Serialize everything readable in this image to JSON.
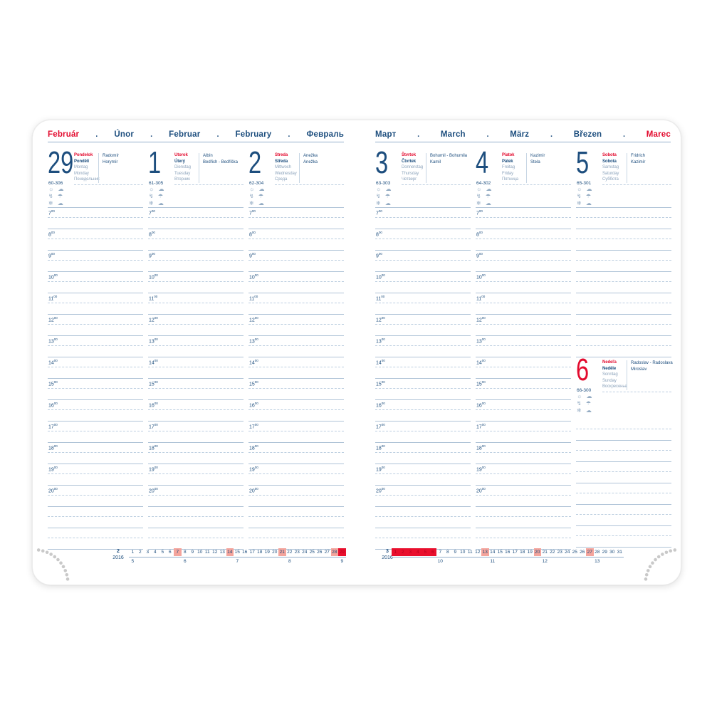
{
  "colors": {
    "dark_blue": "#1d4e7e",
    "red": "#e30c2f",
    "muted_day_names": "#8da4bc",
    "rule_line": "#afc3d7",
    "pink_highlight": "#f4a49c",
    "red_highlight": "#e90f2d",
    "corner_dot_gray": "#c9c9c9"
  },
  "hour_labels": [
    "7",
    "8",
    "9",
    "10",
    "11",
    "12",
    "13",
    "14",
    "15",
    "16",
    "17",
    "18",
    "19",
    "20"
  ],
  "hour_superscript": "00",
  "weather_icon_rows": [
    {
      "name": "sun-and-sun-behind-cloud-icons",
      "glyphs": "☼ ☁"
    },
    {
      "name": "lightning-and-rain-cloud-icons",
      "glyphs": "↯ ☂"
    },
    {
      "name": "snowflake-and-wind-cloud-icons",
      "glyphs": "❄ ☁"
    }
  ],
  "pages": [
    {
      "side": "left",
      "header": {
        "words": [
          "Február",
          "Únor",
          "Februar",
          "February",
          "Февраль"
        ],
        "accent_index": 0,
        "separator": "."
      },
      "columns": [
        {
          "kind": "day",
          "extra_rows": 2,
          "day": {
            "number": "29",
            "ordinal": "60-306",
            "red": false,
            "names": [
              "Pondelok",
              "Pondělí",
              "Montag",
              "Monday",
              "Понедельник"
            ],
            "namedays": [
              "Radomír",
              "Horymír"
            ]
          }
        },
        {
          "kind": "day",
          "extra_rows": 2,
          "day": {
            "number": "1",
            "ordinal": "61-305",
            "red": false,
            "names": [
              "Utorok",
              "Úterý",
              "Dienstag",
              "Tuesday",
              "Вторник"
            ],
            "namedays": [
              "Albín",
              "Bedřich - Bedřiška"
            ]
          }
        },
        {
          "kind": "day",
          "extra_rows": 2,
          "day": {
            "number": "2",
            "ordinal": "62-304",
            "red": false,
            "names": [
              "Streda",
              "Středa",
              "Mittwoch",
              "Wednesday",
              "Среда"
            ],
            "namedays": [
              "Anežka",
              "Anežka"
            ]
          }
        }
      ],
      "calendar": {
        "month": "2",
        "year": "2016",
        "days": 29,
        "pink_days": [
          7,
          14,
          21,
          28
        ],
        "red_days": [
          29
        ],
        "weeks": [
          {
            "label": "5",
            "day": 1
          },
          {
            "label": "6",
            "day": 8
          },
          {
            "label": "7",
            "day": 15
          },
          {
            "label": "8",
            "day": 22
          },
          {
            "label": "9",
            "day": 29
          }
        ]
      }
    },
    {
      "side": "right",
      "header": {
        "words": [
          "Март",
          "March",
          "März",
          "Březen",
          "Marec"
        ],
        "accent_index": 4,
        "separator": "."
      },
      "columns": [
        {
          "kind": "day",
          "extra_rows": 2,
          "day": {
            "number": "3",
            "ordinal": "63-303",
            "red": false,
            "names": [
              "Štvrtok",
              "Čtvrtek",
              "Donnerstag",
              "Thursday",
              "Четверг"
            ],
            "namedays": [
              "Bohumil - Bohumila",
              "Kamil"
            ]
          }
        },
        {
          "kind": "day",
          "extra_rows": 2,
          "day": {
            "number": "4",
            "ordinal": "64-302",
            "red": false,
            "names": [
              "Piatok",
              "Pátek",
              "Freitag",
              "Friday",
              "Пятница"
            ],
            "namedays": [
              "Kazimír",
              "Stela"
            ]
          }
        },
        {
          "kind": "split",
          "top_rows": 7,
          "bottom_rows": 6,
          "top_day": {
            "number": "5",
            "ordinal": "65-301",
            "red": false,
            "names": [
              "Sobota",
              "Sobota",
              "Samstag",
              "Saturday",
              "Суббота"
            ],
            "namedays": [
              "Fridrich",
              "Kazimír"
            ]
          },
          "bottom_day": {
            "number": "6",
            "ordinal": "66-300",
            "red": true,
            "names": [
              "Nedeľa",
              "Neděle",
              "Sonntag",
              "Sunday",
              "Воскресенье"
            ],
            "namedays": [
              "Radoslav - Radoslava",
              "Miroslav"
            ]
          }
        }
      ],
      "calendar": {
        "month": "3",
        "year": "2016",
        "days": 31,
        "pink_days": [
          13,
          20,
          27
        ],
        "red_days": [
          1,
          2,
          3,
          4,
          5,
          6
        ],
        "weeks": [
          {
            "label": "10",
            "day": 7
          },
          {
            "label": "11",
            "day": 14
          },
          {
            "label": "12",
            "day": 21
          },
          {
            "label": "13",
            "day": 28
          }
        ]
      }
    }
  ]
}
